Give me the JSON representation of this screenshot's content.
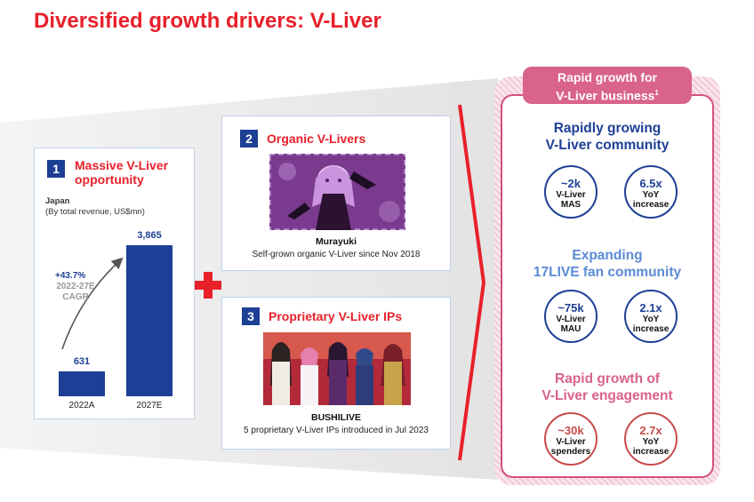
{
  "title": "Diversified growth drivers: V-Liver",
  "card1": {
    "number": "1",
    "title_line1": "Massive V-Liver",
    "title_line2": "opportunity",
    "region": "Japan",
    "unit_note": "(By total revenue, US$mn)",
    "cagr_value": "+43.7%",
    "cagr_period": "2022-27E",
    "cagr_label": "CAGR"
  },
  "chart_data": {
    "type": "bar",
    "categories": [
      "2022A",
      "2027E"
    ],
    "values": [
      631,
      3865
    ],
    "value_labels": [
      "631",
      "3,865"
    ],
    "title": "",
    "xlabel": "",
    "ylabel": "",
    "ylim": [
      0,
      3865
    ],
    "annotation": "+43.7% 2022-27E CAGR",
    "colors": [
      "#1d3f95"
    ]
  },
  "card2": {
    "number": "2",
    "title": "Organic V-Livers",
    "caption_bold": "Murayuki",
    "caption": "Self-grown organic V-Liver since Nov 2018"
  },
  "card3": {
    "number": "3",
    "title": "Proprietary V-Liver IPs",
    "caption_bold": "BUSHILIVE",
    "caption": "5 proprietary V-Liver IPs introduced in Jul 2023"
  },
  "panel": {
    "badge_line1": "Rapid growth for",
    "badge_line2": "V-Liver business",
    "badge_sup": "1",
    "sections": [
      {
        "title_line1": "Rapidly growing",
        "title_line2": "V-Liver community",
        "color": "#1d3f95",
        "metrics": [
          {
            "value": "~2k",
            "label1": "V-Liver",
            "label2": "MAS"
          },
          {
            "value": "6.5x",
            "label1": "YoY",
            "label2": "increase"
          }
        ]
      },
      {
        "title_line1": "Expanding",
        "title_line2": "17LIVE fan community",
        "color": "#5b8bd6",
        "metrics": [
          {
            "value": "~75k",
            "label1": "V-Liver",
            "label2": "MAU"
          },
          {
            "value": "2.1x",
            "label1": "YoY",
            "label2": "increase"
          }
        ]
      },
      {
        "title_line1": "Rapid growth of",
        "title_line2": "V-Liver engagement",
        "color": "#d9638a",
        "metrics": [
          {
            "value": "~30k",
            "label1": "V-Liver",
            "label2": "spenders"
          },
          {
            "value": "2.7x",
            "label1": "YoY",
            "label2": "increase"
          }
        ]
      }
    ]
  }
}
